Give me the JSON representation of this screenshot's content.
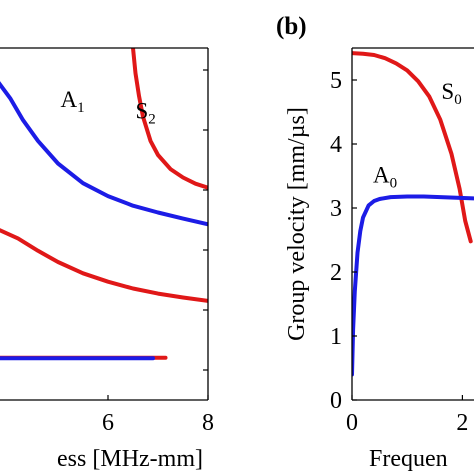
{
  "panel_labels": [
    "",
    "(b)"
  ],
  "colors": {
    "symmetric": "#e01818",
    "antisymmetric": "#1c1ce6",
    "axis": "#000000"
  },
  "chart_data": [
    {
      "panel": "a",
      "type": "line",
      "title": "",
      "xlabel": "ess [MHz-mm]",
      "ylabel": "",
      "xlim": [
        3.8,
        8
      ],
      "ylim": [
        -0.65,
        5.6
      ],
      "xticks": [
        6,
        8
      ],
      "yticks": [],
      "annotations": [
        {
          "id": "A1",
          "main": "A",
          "sub": "1",
          "x": 5.05,
          "y": 4.55,
          "color": "blue"
        },
        {
          "id": "S2",
          "main": "S",
          "sub": "2",
          "x": 6.55,
          "y": 4.35,
          "color": "red"
        }
      ],
      "series": [
        {
          "name": "A1",
          "color": "blue",
          "x": [
            3.8,
            4.05,
            4.3,
            4.6,
            5.0,
            5.5,
            6.0,
            6.5,
            7.0,
            7.5,
            8.0
          ],
          "y": [
            5.0,
            4.7,
            4.32,
            3.95,
            3.55,
            3.2,
            2.97,
            2.8,
            2.68,
            2.57,
            2.47
          ]
        },
        {
          "name": "S2",
          "color": "red",
          "x": [
            6.5,
            6.55,
            6.62,
            6.7,
            6.85,
            7.0,
            7.25,
            7.5,
            7.75,
            8.0
          ],
          "y": [
            5.6,
            5.15,
            4.75,
            4.38,
            3.95,
            3.7,
            3.45,
            3.3,
            3.19,
            3.12
          ]
        },
        {
          "name": "S1",
          "color": "red",
          "x": [
            3.8,
            4.2,
            4.6,
            5.0,
            5.5,
            6.0,
            6.5,
            7.0,
            7.5,
            8.0
          ],
          "y": [
            2.38,
            2.22,
            2.0,
            1.8,
            1.6,
            1.45,
            1.33,
            1.24,
            1.17,
            1.11
          ]
        },
        {
          "name": "S0",
          "color": "red",
          "x": [
            3.8,
            5.0,
            6.0,
            7.15
          ],
          "y": [
            0.1,
            0.1,
            0.1,
            0.1
          ]
        },
        {
          "name": "A0",
          "color": "blue",
          "x": [
            3.8,
            5.0,
            6.0,
            6.9
          ],
          "y": [
            0.09,
            0.09,
            0.09,
            0.09
          ]
        }
      ]
    },
    {
      "panel": "b",
      "type": "line",
      "title": "",
      "xlabel": "Frequen",
      "ylabel": "Group velocity [mm/µs]",
      "xlim": [
        0,
        2.5
      ],
      "ylim": [
        0,
        5.5
      ],
      "xticks": [
        0,
        2
      ],
      "yticks": [
        0,
        1,
        2,
        3,
        4,
        5
      ],
      "annotations": [
        {
          "id": "A0",
          "main": "A",
          "sub": "0",
          "x": 0.38,
          "y": 3.4,
          "color": "blue"
        },
        {
          "id": "S0",
          "main": "S",
          "sub": "0",
          "x": 1.62,
          "y": 4.7,
          "color": "red"
        }
      ],
      "series": [
        {
          "name": "S0",
          "color": "red",
          "x": [
            0,
            0.2,
            0.4,
            0.6,
            0.8,
            1.0,
            1.2,
            1.4,
            1.6,
            1.8,
            1.95,
            2.05,
            2.15
          ],
          "y": [
            5.42,
            5.41,
            5.39,
            5.34,
            5.26,
            5.15,
            4.98,
            4.74,
            4.38,
            3.85,
            3.3,
            2.8,
            2.48
          ]
        },
        {
          "name": "A0",
          "color": "blue",
          "x": [
            0,
            0.02,
            0.05,
            0.1,
            0.15,
            0.2,
            0.3,
            0.4,
            0.5,
            0.7,
            1.0,
            1.3,
            1.6,
            1.9,
            2.2
          ],
          "y": [
            0.4,
            1.1,
            1.7,
            2.3,
            2.64,
            2.85,
            3.04,
            3.11,
            3.14,
            3.17,
            3.18,
            3.18,
            3.17,
            3.16,
            3.15
          ]
        }
      ]
    }
  ]
}
